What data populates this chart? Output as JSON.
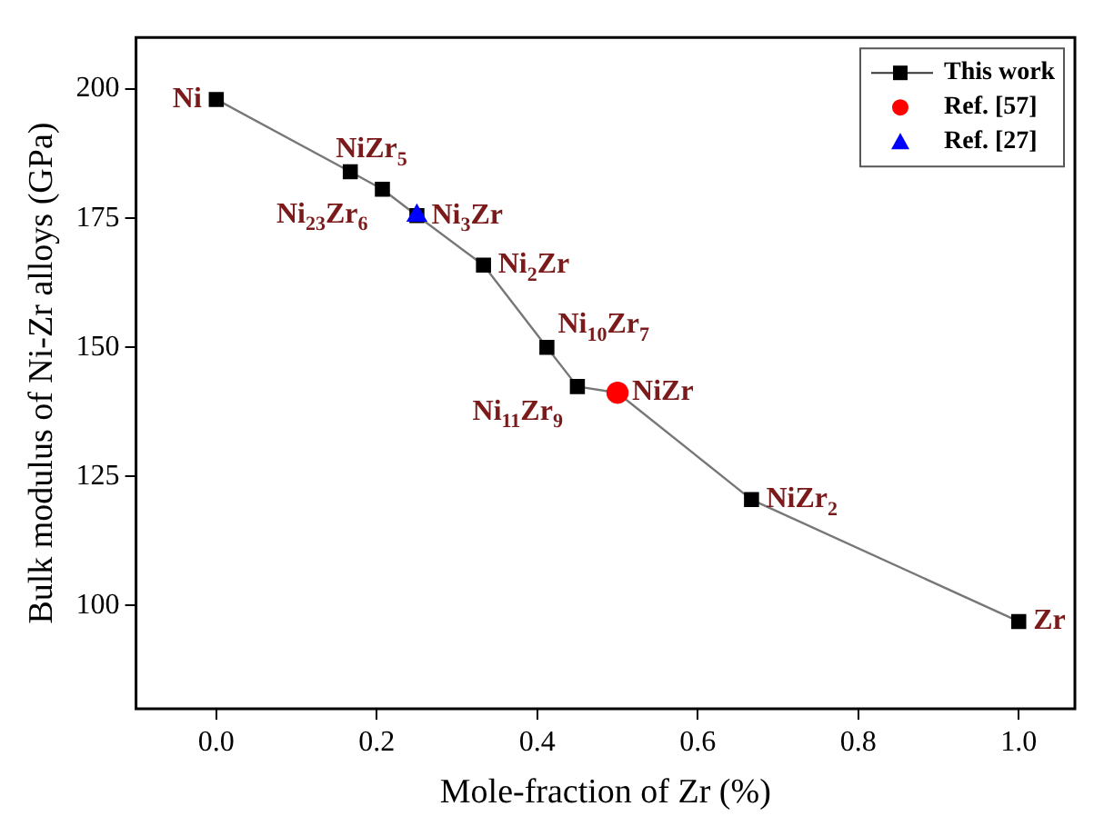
{
  "chart_data": {
    "type": "line",
    "xlabel": "Mole-fraction of Zr (%)",
    "ylabel": "Bulk modulus of Ni-Zr alloys (GPa)",
    "xlim": [
      -0.1,
      1.07
    ],
    "xticks": [
      {
        "value": 0,
        "label": "0.0"
      },
      0.2,
      0.4,
      0.6,
      0.8,
      {
        "value": 1,
        "label": "1.0"
      }
    ],
    "ylim": [
      80,
      210
    ],
    "yticks": [
      100,
      125,
      150,
      175,
      200
    ],
    "series": [
      {
        "name": "This work",
        "color": "#000000",
        "marker": "square",
        "x": [
          0,
          0.167,
          0.207,
          0.25,
          0.333,
          0.412,
          0.45,
          0.5,
          0.667,
          1.0
        ],
        "values": [
          198,
          184,
          180.6,
          175.5,
          165.9,
          150,
          142.4,
          141.2,
          120.5,
          96.9
        ]
      },
      {
        "name": "Ref. [57]",
        "type": "scatter",
        "color": "#ff0000",
        "marker": "circle",
        "x": [
          0.5
        ],
        "values": [
          141.2
        ]
      },
      {
        "name": "Ref. [27]",
        "type": "scatter",
        "color": "#0000ff",
        "marker": "triangle",
        "x": [
          0.25
        ],
        "values": [
          175.5
        ]
      }
    ],
    "annotations": [
      {
        "text": "Ni",
        "x": 0,
        "y": 198
      },
      {
        "text": "NiZr$_{5}$",
        "x": 0.167,
        "y": 184
      },
      {
        "text": "Ni$_{23}$Zr$_{6}$",
        "x": 0.207,
        "y": 180.6
      },
      {
        "text": "Ni$_{3}$Zr",
        "x": 0.25,
        "y": 175.5
      },
      {
        "text": "Ni$_{2}$Zr",
        "x": 0.333,
        "y": 165.9
      },
      {
        "text": "Ni$_{10}$Zr$_{7}$",
        "x": 0.412,
        "y": 150
      },
      {
        "text": "Ni$_{11}$Zr$_{9}$",
        "x": 0.45,
        "y": 142.4
      },
      {
        "text": "NiZr",
        "x": 0.5,
        "y": 141.2
      },
      {
        "text": "NiZr$_{2}$",
        "x": 0.667,
        "y": 120.5
      },
      {
        "text": "Zr",
        "x": 1.0,
        "y": 96.9
      }
    ],
    "legend": "top right",
    "grid": false
  }
}
